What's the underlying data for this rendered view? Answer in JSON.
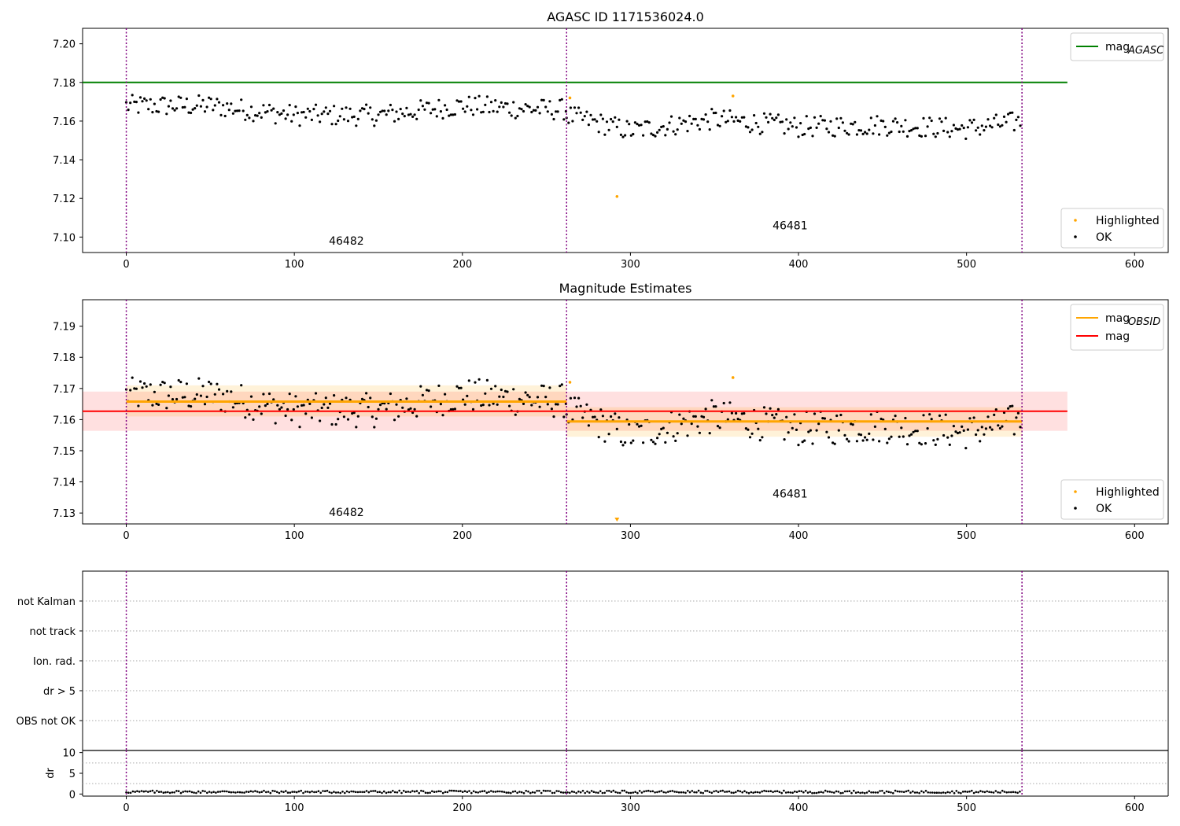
{
  "chart_data": [
    {
      "type": "scatter",
      "title": "AGASC ID 1171536024.0",
      "xlim": [
        -26,
        620
      ],
      "ylim": [
        7.092,
        7.208
      ],
      "xticks": [
        0,
        100,
        200,
        300,
        400,
        500,
        600
      ],
      "yticks": [
        7.1,
        7.12,
        7.14,
        7.16,
        7.18,
        7.2
      ],
      "ytick_labels": [
        "7.10",
        "7.12",
        "7.14",
        "7.16",
        "7.18",
        "7.20"
      ],
      "obs_boundaries": [
        0,
        262,
        533
      ],
      "reference_lines": [
        {
          "name": "mag_AGASC",
          "y": 7.18,
          "x": [
            -26,
            560
          ],
          "color": "#008000"
        }
      ],
      "annotations": [
        {
          "text": "46482",
          "x": 131,
          "y": 7.096
        },
        {
          "text": "46481",
          "x": 395,
          "y": 7.104
        }
      ],
      "legend_upper": {
        "position": "top-right",
        "entries": [
          {
            "label_main": "mag",
            "label_sub": "AGASC",
            "color": "#008000"
          }
        ]
      },
      "legend_lower": {
        "position": "bottom-right",
        "entries": [
          {
            "label": "Highlighted",
            "color": "#ffa500"
          },
          {
            "label": "OK",
            "color": "#000000"
          }
        ]
      },
      "highlighted_points": [
        {
          "x": 264,
          "y": 7.172
        },
        {
          "x": 292,
          "y": 7.121
        },
        {
          "x": 361,
          "y": 7.173
        }
      ],
      "series_level": [
        {
          "x": [
            0,
            50,
            100,
            150,
            200,
            250,
            262
          ],
          "y": [
            7.168,
            7.168,
            7.163,
            7.163,
            7.168,
            7.166,
            7.166
          ]
        },
        {
          "x": [
            262,
            300,
            350,
            400,
            450,
            500,
            533
          ],
          "y": [
            7.163,
            7.155,
            7.161,
            7.157,
            7.158,
            7.156,
            7.16
          ]
        }
      ]
    },
    {
      "type": "scatter",
      "title": "Magnitude Estimates",
      "xlim": [
        -26,
        620
      ],
      "ylim": [
        7.1265,
        7.1985
      ],
      "xticks": [
        0,
        100,
        200,
        300,
        400,
        500,
        600
      ],
      "yticks": [
        7.13,
        7.14,
        7.15,
        7.16,
        7.17,
        7.18,
        7.19
      ],
      "ytick_labels": [
        "7.13",
        "7.14",
        "7.15",
        "7.16",
        "7.17",
        "7.18",
        "7.19"
      ],
      "obs_boundaries": [
        0,
        262,
        533
      ],
      "mag": {
        "name": "mag",
        "y": 7.1627,
        "band": [
          7.1564,
          7.169
        ],
        "x": [
          -26,
          560
        ],
        "color": "#ff0000"
      },
      "mag_obsid": [
        {
          "y": 7.1658,
          "band": [
            7.161,
            7.171
          ],
          "x": [
            0,
            262
          ]
        },
        {
          "y": 7.1594,
          "band": [
            7.1545,
            7.164
          ],
          "x": [
            262,
            533
          ]
        }
      ],
      "mag_obsid_color": "#ffa500",
      "annotations": [
        {
          "text": "46482",
          "x": 131,
          "y": 7.129
        },
        {
          "text": "46481",
          "x": 395,
          "y": 7.135
        }
      ],
      "legend_upper": {
        "position": "top-right",
        "entries": [
          {
            "label_main": "mag",
            "label_sub": "OBSID",
            "color": "#ffa500"
          },
          {
            "label_main": "mag",
            "label_sub": "",
            "color": "#ff0000"
          }
        ]
      },
      "legend_lower": {
        "position": "bottom-right",
        "entries": [
          {
            "label": "Highlighted",
            "color": "#ffa500"
          },
          {
            "label": "OK",
            "color": "#000000"
          }
        ]
      },
      "highlighted_points": [
        {
          "x": 264,
          "y": 7.172
        },
        {
          "x": 361,
          "y": 7.1735
        }
      ],
      "offscale_marker": {
        "x": 292,
        "direction": "down"
      },
      "series_level": [
        {
          "x": [
            0,
            50,
            100,
            150,
            200,
            250,
            262
          ],
          "y": [
            7.168,
            7.168,
            7.163,
            7.163,
            7.168,
            7.166,
            7.166
          ]
        },
        {
          "x": [
            262,
            300,
            350,
            400,
            450,
            500,
            533
          ],
          "y": [
            7.163,
            7.155,
            7.161,
            7.157,
            7.158,
            7.156,
            7.16
          ]
        }
      ]
    },
    {
      "type": "scatter",
      "title": "",
      "xlim": [
        -26,
        620
      ],
      "flags": [
        "not Kalman",
        "not track",
        "Ion. rad.",
        "dr > 5",
        "OBS not OK"
      ],
      "obs_boundaries": [
        0,
        262,
        533
      ]
    },
    {
      "type": "scatter",
      "title": "",
      "ylabel": "dr",
      "xlim": [
        -26,
        620
      ],
      "ylim": [
        -0.5,
        10.5
      ],
      "xticks": [
        0,
        100,
        200,
        300,
        400,
        500,
        600
      ],
      "yticks": [
        0,
        5,
        10
      ],
      "ytick_labels": [
        "0",
        "5",
        "10"
      ],
      "obs_boundaries": [
        0,
        262,
        533
      ],
      "dr_range": [
        0,
        533
      ],
      "dr_typical": 0.4
    }
  ]
}
